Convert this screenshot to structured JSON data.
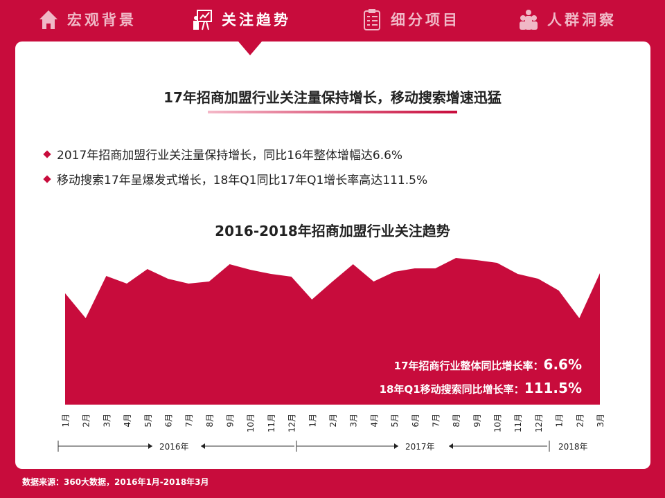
{
  "nav": [
    {
      "label": "宏观背景",
      "icon": "house-icon",
      "active": false
    },
    {
      "label": "关注趋势",
      "icon": "presentation-chart-icon",
      "active": true
    },
    {
      "label": "细分项目",
      "icon": "clipboard-checklist-icon",
      "active": false
    },
    {
      "label": "人群洞察",
      "icon": "people-group-icon",
      "active": false
    }
  ],
  "headline": "17年招商加盟行业关注量保持增长，移动搜索增速迅猛",
  "bullets": [
    "2017年招商加盟行业关注量保持增长，同比16年整体增幅达6.6%",
    "移动搜索17年呈爆发式增长，18年Q1同比17年Q1增长率高达111.5%"
  ],
  "colors": {
    "accent": "#c80c3c"
  },
  "chart_data": {
    "type": "area",
    "title": "2016-2018年招商加盟行业关注趋势",
    "categories": [
      "1月",
      "2月",
      "3月",
      "4月",
      "5月",
      "6月",
      "7月",
      "8月",
      "9月",
      "10月",
      "11月",
      "12月",
      "1月",
      "2月",
      "3月",
      "4月",
      "5月",
      "6月",
      "7月",
      "8月",
      "9月",
      "10月",
      "11月",
      "12月",
      "1月",
      "2月",
      "3月"
    ],
    "values": [
      161,
      125,
      186,
      175,
      196,
      182,
      175,
      178,
      203,
      195,
      189,
      185,
      152,
      178,
      203,
      178,
      192,
      197,
      197,
      212,
      209,
      205,
      189,
      182,
      165,
      125,
      190
    ],
    "years": [
      "2016年",
      "2017年",
      "2018年"
    ],
    "annotations": [
      {
        "label": "17年招商行业整体同比增长率：",
        "value": "6.6%"
      },
      {
        "label": "18年Q1移动搜索同比增长率：",
        "value": "111.5%"
      }
    ]
  },
  "source": "数据来源：360大数据，2016年1月-2018年3月"
}
